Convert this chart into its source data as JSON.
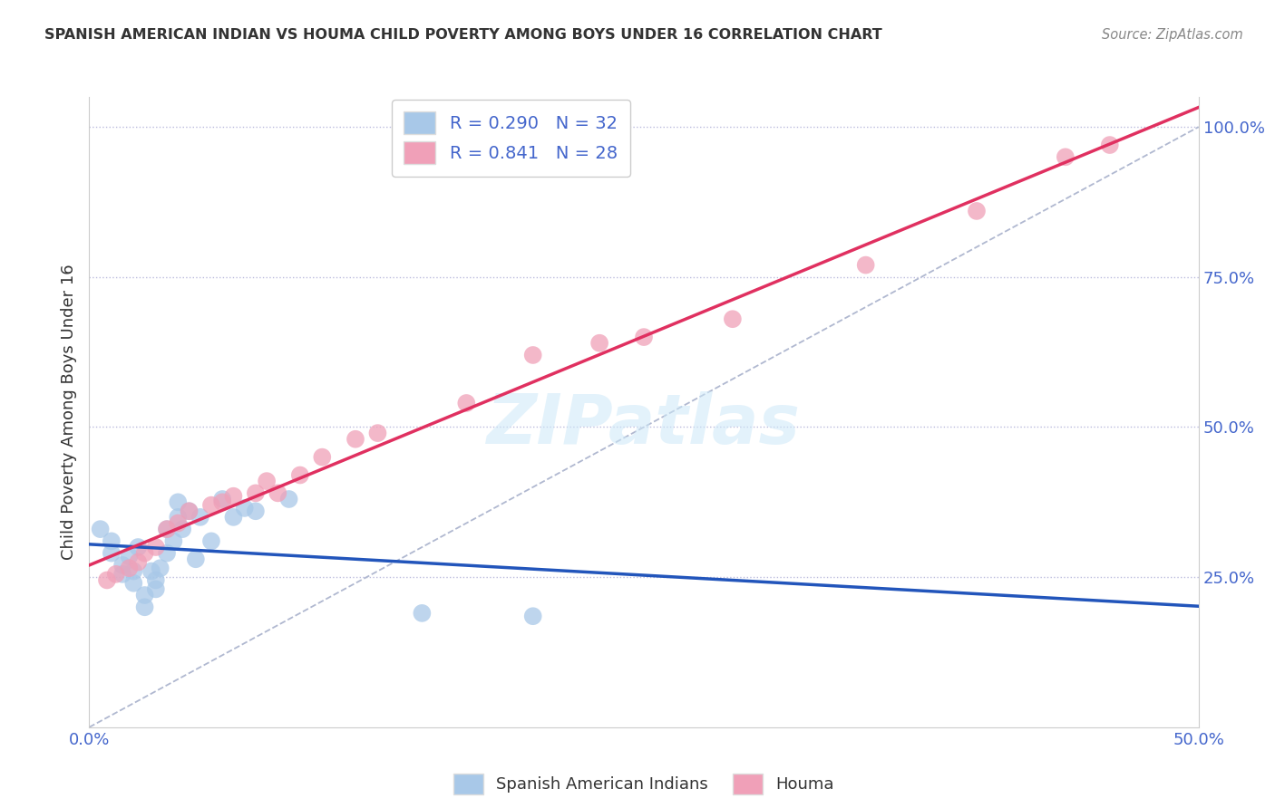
{
  "title": "SPANISH AMERICAN INDIAN VS HOUMA CHILD POVERTY AMONG BOYS UNDER 16 CORRELATION CHART",
  "source": "Source: ZipAtlas.com",
  "ylabel": "Child Poverty Among Boys Under 16",
  "xlim": [
    0.0,
    0.5
  ],
  "ylim": [
    0.0,
    1.05
  ],
  "ytick_vals": [
    0.25,
    0.5,
    0.75,
    1.0
  ],
  "ytick_labels": [
    "25.0%",
    "50.0%",
    "75.0%",
    "100.0%"
  ],
  "xtick_vals": [
    0.0,
    0.5
  ],
  "xtick_labels": [
    "0.0%",
    "50.0%"
  ],
  "legend_label1": "Spanish American Indians",
  "legend_label2": "Houma",
  "r1": 0.29,
  "n1": 32,
  "r2": 0.841,
  "n2": 28,
  "color1": "#a8c8e8",
  "color2": "#f0a0b8",
  "line_color1": "#2255bb",
  "line_color2": "#e03060",
  "watermark": "ZIPatlas",
  "scatter1_x": [
    0.005,
    0.01,
    0.01,
    0.015,
    0.015,
    0.018,
    0.02,
    0.02,
    0.022,
    0.025,
    0.025,
    0.028,
    0.03,
    0.03,
    0.032,
    0.035,
    0.035,
    0.038,
    0.04,
    0.04,
    0.042,
    0.045,
    0.048,
    0.05,
    0.055,
    0.06,
    0.065,
    0.07,
    0.075,
    0.09,
    0.15,
    0.2
  ],
  "scatter1_y": [
    0.33,
    0.29,
    0.31,
    0.27,
    0.255,
    0.285,
    0.24,
    0.26,
    0.3,
    0.22,
    0.2,
    0.26,
    0.245,
    0.23,
    0.265,
    0.33,
    0.29,
    0.31,
    0.35,
    0.375,
    0.33,
    0.36,
    0.28,
    0.35,
    0.31,
    0.38,
    0.35,
    0.365,
    0.36,
    0.38,
    0.19,
    0.185
  ],
  "scatter2_x": [
    0.008,
    0.012,
    0.018,
    0.022,
    0.025,
    0.03,
    0.035,
    0.04,
    0.045,
    0.055,
    0.06,
    0.065,
    0.075,
    0.08,
    0.085,
    0.095,
    0.105,
    0.12,
    0.13,
    0.17,
    0.2,
    0.23,
    0.25,
    0.29,
    0.35,
    0.4,
    0.44,
    0.46
  ],
  "scatter2_y": [
    0.245,
    0.255,
    0.265,
    0.275,
    0.29,
    0.3,
    0.33,
    0.34,
    0.36,
    0.37,
    0.375,
    0.385,
    0.39,
    0.41,
    0.39,
    0.42,
    0.45,
    0.48,
    0.49,
    0.54,
    0.62,
    0.64,
    0.65,
    0.68,
    0.77,
    0.86,
    0.95,
    0.97
  ],
  "tick_color": "#4466cc",
  "grid_color": "#bbbbdd",
  "title_color": "#333333",
  "source_color": "#888888"
}
